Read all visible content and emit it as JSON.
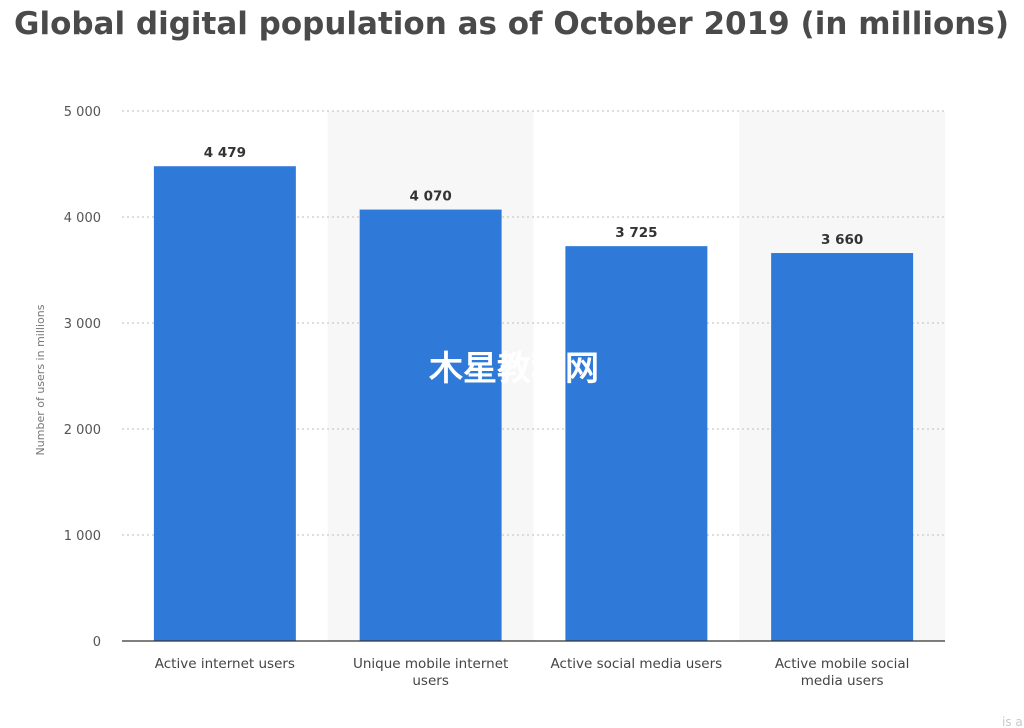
{
  "chart_data": {
    "type": "bar",
    "title": "Global digital population as of October 2019 (in millions)",
    "ylabel": "Number of users in millions",
    "xlabel": "",
    "categories": [
      [
        "Active internet users"
      ],
      [
        "Unique mobile internet",
        "users"
      ],
      [
        "Active social media users"
      ],
      [
        "Active mobile social",
        "media users"
      ]
    ],
    "values": [
      4479,
      4070,
      3725,
      3660
    ],
    "value_labels": [
      "4 479",
      "4 070",
      "3 725",
      "3 660"
    ],
    "ylim": [
      0,
      5000
    ],
    "yticks": [
      0,
      1000,
      2000,
      3000,
      4000,
      5000
    ],
    "ytick_labels": [
      "0",
      "1 000",
      "2 000",
      "3 000",
      "4 000",
      "5 000"
    ],
    "grid": true,
    "bar_color": "#2f7ad8",
    "band_color": "#f7f7f7"
  },
  "watermark": "木星教程网",
  "footer_fragment": "is a"
}
